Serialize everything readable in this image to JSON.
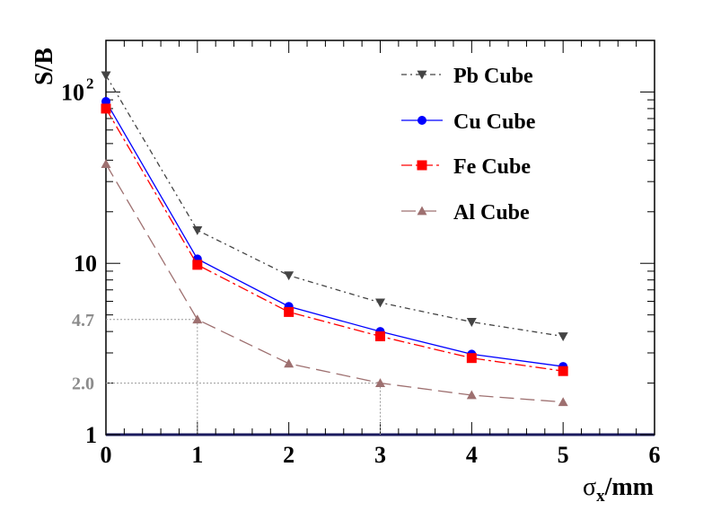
{
  "chart_data": {
    "type": "line",
    "y_scale": "log",
    "xlim": [
      0,
      6
    ],
    "ylim": [
      1,
      200
    ],
    "x_ticks": [
      "0",
      "1",
      "2",
      "3",
      "4",
      "5",
      "6"
    ],
    "y_tick_10": "10",
    "y_tick_1": "1",
    "y_tick_100_base": "10",
    "y_tick_100_exp": "2",
    "ylabel": "S/B",
    "xlabel_sigma": "σ",
    "xlabel_sub": "x",
    "xlabel_unit": "/mm",
    "series": [
      {
        "name": "Pb Cube",
        "marker": "triangle-down",
        "color": "#444444",
        "dash": "6,4,2,4",
        "x": [
          0,
          1,
          2,
          3,
          4,
          5
        ],
        "y": [
          125,
          15.6,
          8.5,
          5.9,
          4.55,
          3.75
        ]
      },
      {
        "name": "Cu Cube",
        "marker": "circle",
        "color": "#0000ff",
        "dash": "",
        "x": [
          0,
          1,
          2,
          3,
          4,
          5
        ],
        "y": [
          88,
          10.6,
          5.6,
          4.0,
          2.95,
          2.5
        ]
      },
      {
        "name": "Fe Cube",
        "marker": "square",
        "color": "#ff0000",
        "dash": "12,4,3,4",
        "x": [
          0,
          1,
          2,
          3,
          4,
          5
        ],
        "y": [
          80,
          9.8,
          5.2,
          3.75,
          2.8,
          2.35
        ]
      },
      {
        "name": "Al Cube",
        "marker": "triangle-up",
        "color": "#9e7070",
        "dash": "16,7",
        "x": [
          0,
          1,
          2,
          3,
          4,
          5
        ],
        "y": [
          38,
          4.7,
          2.6,
          2.0,
          1.7,
          1.55
        ]
      }
    ],
    "annotations": [
      {
        "label": "4.7",
        "x": 1,
        "y": 4.7
      },
      {
        "label": "2.0",
        "x": 3,
        "y": 2.0
      }
    ]
  }
}
